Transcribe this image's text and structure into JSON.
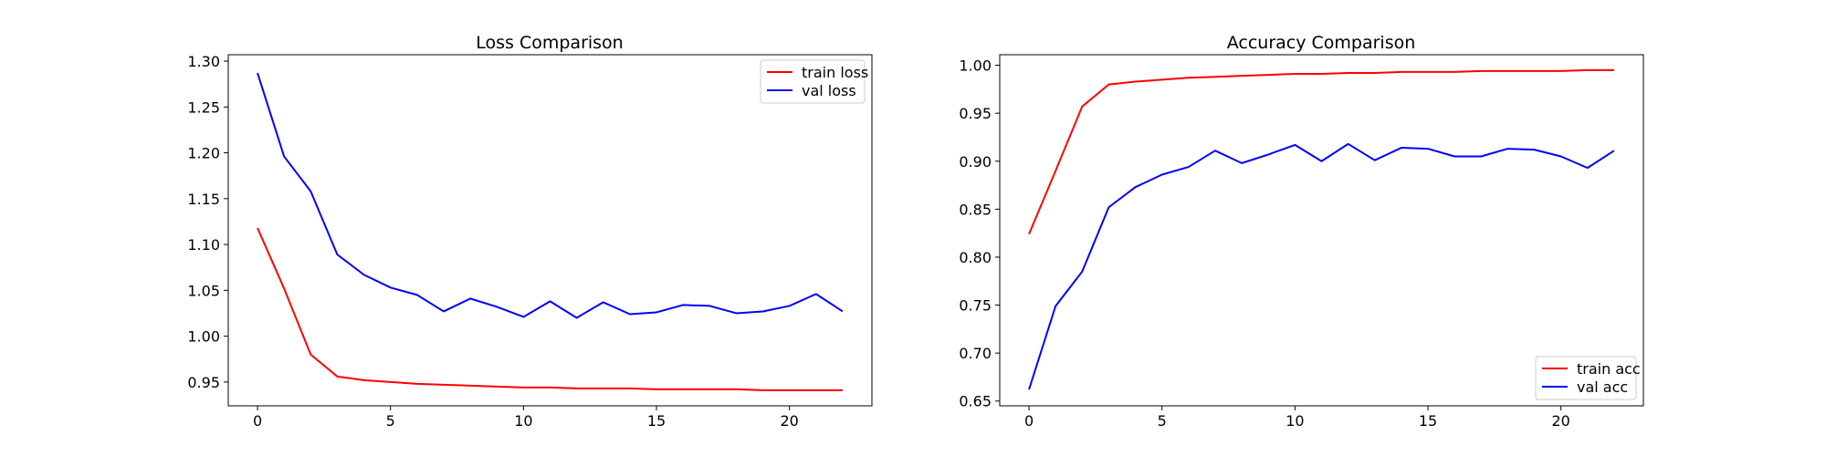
{
  "chart_data": [
    {
      "type": "line",
      "title": "Loss Comparison",
      "xlabel": "",
      "ylabel": "",
      "xlim": [
        -1.1,
        23.1
      ],
      "ylim": [
        0.924,
        1.307
      ],
      "xticks": [
        0,
        5,
        10,
        15,
        20
      ],
      "yticks": [
        0.95,
        1.0,
        1.05,
        1.1,
        1.15,
        1.2,
        1.25,
        1.3
      ],
      "ytick_labels": [
        "0.95",
        "1.00",
        "1.05",
        "1.10",
        "1.15",
        "1.20",
        "1.25",
        "1.30"
      ],
      "grid": false,
      "legend_position": "upper right",
      "x": [
        0,
        1,
        2,
        3,
        4,
        5,
        6,
        7,
        8,
        9,
        10,
        11,
        12,
        13,
        14,
        15,
        16,
        17,
        18,
        19,
        20,
        21,
        22
      ],
      "series": [
        {
          "name": "train loss",
          "color": "#ff0000",
          "values": [
            1.118,
            1.052,
            0.98,
            0.956,
            0.952,
            0.95,
            0.948,
            0.947,
            0.946,
            0.945,
            0.944,
            0.944,
            0.943,
            0.943,
            0.943,
            0.942,
            0.942,
            0.942,
            0.942,
            0.941,
            0.941,
            0.941,
            0.941
          ]
        },
        {
          "name": "val loss",
          "color": "#0000ff",
          "values": [
            1.287,
            1.196,
            1.158,
            1.089,
            1.067,
            1.053,
            1.045,
            1.027,
            1.041,
            1.032,
            1.021,
            1.038,
            1.02,
            1.037,
            1.024,
            1.026,
            1.034,
            1.033,
            1.025,
            1.027,
            1.033,
            1.046,
            1.027
          ]
        }
      ]
    },
    {
      "type": "line",
      "title": "Accuracy Comparison",
      "xlabel": "",
      "ylabel": "",
      "xlim": [
        -1.1,
        23.1
      ],
      "ylim": [
        0.645,
        1.011
      ],
      "xticks": [
        0,
        5,
        10,
        15,
        20
      ],
      "yticks": [
        0.65,
        0.7,
        0.75,
        0.8,
        0.85,
        0.9,
        0.95,
        1.0
      ],
      "ytick_labels": [
        "0.65",
        "0.70",
        "0.75",
        "0.80",
        "0.85",
        "0.90",
        "0.95",
        "1.00"
      ],
      "grid": false,
      "legend_position": "lower right",
      "x": [
        0,
        1,
        2,
        3,
        4,
        5,
        6,
        7,
        8,
        9,
        10,
        11,
        12,
        13,
        14,
        15,
        16,
        17,
        18,
        19,
        20,
        21,
        22
      ],
      "series": [
        {
          "name": "train acc",
          "color": "#ff0000",
          "values": [
            0.824,
            0.89,
            0.957,
            0.98,
            0.983,
            0.985,
            0.987,
            0.988,
            0.989,
            0.99,
            0.991,
            0.991,
            0.992,
            0.992,
            0.993,
            0.993,
            0.993,
            0.994,
            0.994,
            0.994,
            0.994,
            0.995,
            0.995
          ]
        },
        {
          "name": "val acc",
          "color": "#0000ff",
          "values": [
            0.662,
            0.749,
            0.785,
            0.852,
            0.873,
            0.886,
            0.894,
            0.911,
            0.898,
            0.907,
            0.917,
            0.9,
            0.918,
            0.901,
            0.914,
            0.913,
            0.905,
            0.905,
            0.913,
            0.912,
            0.905,
            0.893,
            0.911
          ]
        }
      ]
    }
  ]
}
